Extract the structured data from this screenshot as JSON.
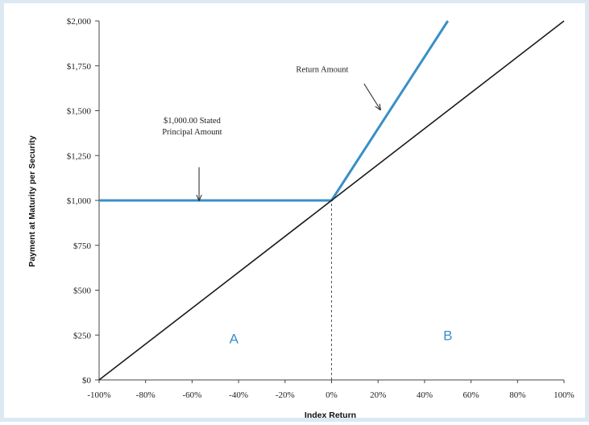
{
  "colors": {
    "payoff_line": "#3a8fc7",
    "reference_line": "#1a1a1a",
    "axis": "#444444",
    "region_label": "#3a8fc7",
    "frame_border": "#dce8f2"
  },
  "chart_data": {
    "type": "line",
    "title": "",
    "xlabel": "Index Return",
    "ylabel": "Payment at Maturity per Security",
    "x_unit": "percent",
    "xlim": [
      -100,
      100
    ],
    "ylim": [
      0,
      2000
    ],
    "x_ticks": [
      -100,
      -80,
      -60,
      -40,
      -20,
      0,
      20,
      40,
      60,
      80,
      100
    ],
    "x_tick_labels": [
      "-100%",
      "-80%",
      "-60%",
      "-40%",
      "-20%",
      "0%",
      "20%",
      "40%",
      "60%",
      "80%",
      "100%"
    ],
    "y_ticks": [
      0,
      250,
      500,
      750,
      1000,
      1250,
      1500,
      1750,
      2000
    ],
    "y_tick_labels": [
      "$0",
      "$250",
      "$500",
      "$750",
      "$1,000",
      "$1,250",
      "$1,500",
      "$1,750",
      "$2,000"
    ],
    "grid": false,
    "series": [
      {
        "role": "payoff",
        "color": "#3a8fc7",
        "points": [
          [
            -100,
            1000
          ],
          [
            0,
            1000
          ],
          [
            50,
            2000
          ]
        ]
      },
      {
        "role": "reference",
        "color": "#1a1a1a",
        "points": [
          [
            -100,
            0
          ],
          [
            100,
            2000
          ]
        ]
      }
    ],
    "reference_vline": {
      "x": 0,
      "style": "dashed",
      "from_y": 0,
      "to_y": 1000
    },
    "annotations": [
      {
        "lines": [
          "$1,000.00 Stated",
          "Principal Amount"
        ],
        "text_at": [
          -60,
          1430
        ],
        "arrow_from": [
          -57,
          1185
        ],
        "arrow_to": [
          -57,
          1000
        ]
      },
      {
        "lines": [
          "Return Amount"
        ],
        "text_at": [
          -4,
          1715
        ],
        "arrow_from": [
          14,
          1650
        ],
        "arrow_to": [
          21,
          1505
        ]
      }
    ],
    "region_labels": [
      {
        "text": "A",
        "at": [
          -42,
          230
        ]
      },
      {
        "text": "B",
        "at": [
          50,
          250
        ]
      }
    ]
  }
}
